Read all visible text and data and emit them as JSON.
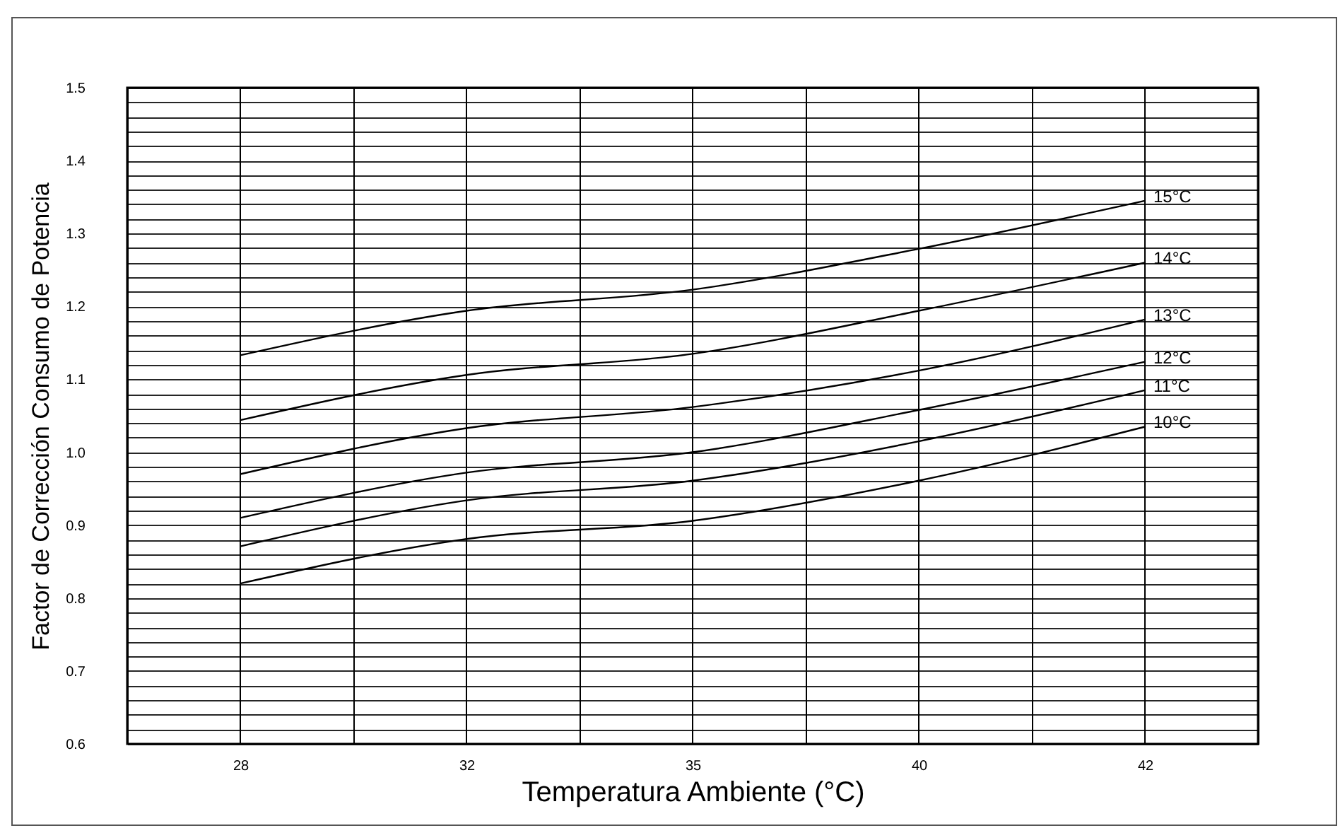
{
  "chart_data": {
    "type": "line",
    "xlabel": "Temperatura Ambiente (°C)",
    "ylabel": "Factor de Corrección Consumo de Potencia",
    "categories": [
      "28",
      "32",
      "35",
      "40",
      "42"
    ],
    "series": [
      {
        "name": "15°C",
        "color": "#000000",
        "values": [
          1.133,
          1.194,
          1.223,
          1.279,
          1.345
        ]
      },
      {
        "name": "14°C",
        "color": "#000000",
        "values": [
          1.044,
          1.106,
          1.135,
          1.194,
          1.26
        ]
      },
      {
        "name": "13°C",
        "color": "#000000",
        "values": [
          0.97,
          1.033,
          1.062,
          1.112,
          1.182
        ]
      },
      {
        "name": "12°C",
        "color": "#000000",
        "values": [
          0.91,
          0.972,
          1.0,
          1.058,
          1.124
        ]
      },
      {
        "name": "11°C",
        "color": "#000000",
        "values": [
          0.871,
          0.934,
          0.961,
          1.015,
          1.085
        ]
      },
      {
        "name": "10°C",
        "color": "#000000",
        "values": [
          0.82,
          0.881,
          0.906,
          0.961,
          1.035
        ]
      }
    ],
    "ylim": [
      0.6,
      1.5
    ],
    "yticks": [
      0.6,
      {
        "value": 0.62,
        "label": null
      },
      {
        "value": 0.64,
        "label": null
      },
      {
        "value": 0.66,
        "label": null
      },
      {
        "value": 0.68,
        "label": null
      },
      0.7,
      {
        "value": 0.72,
        "label": null
      },
      {
        "value": 0.74,
        "label": null
      },
      {
        "value": 0.76,
        "label": null
      },
      {
        "value": 0.78,
        "label": null
      },
      0.8,
      {
        "value": 0.82,
        "label": null
      },
      {
        "value": 0.84,
        "label": null
      },
      {
        "value": 0.86,
        "label": null
      },
      {
        "value": 0.88,
        "label": null
      },
      0.9,
      {
        "value": 0.92,
        "label": null
      },
      {
        "value": 0.94,
        "label": null
      },
      {
        "value": 0.96,
        "label": null
      },
      {
        "value": 0.98,
        "label": null
      },
      {
        "value": 1,
        "label": "1.0"
      },
      {
        "value": 1.02,
        "label": null
      },
      {
        "value": 1.04,
        "label": null
      },
      {
        "value": 1.06,
        "label": null
      },
      {
        "value": 1.08,
        "label": null
      },
      1.1,
      {
        "value": 1.12,
        "label": null
      },
      {
        "value": 1.14,
        "label": null
      },
      {
        "value": 1.16,
        "label": null
      },
      {
        "value": 1.18,
        "label": null
      },
      1.2,
      {
        "value": 1.22,
        "label": null
      },
      {
        "value": 1.24,
        "label": null
      },
      {
        "value": 1.26,
        "label": null
      },
      {
        "value": 1.28,
        "label": null
      },
      1.3,
      {
        "value": 1.32,
        "label": null
      },
      {
        "value": 1.34,
        "label": null
      },
      {
        "value": 1.36,
        "label": null
      },
      {
        "value": 1.38,
        "label": null
      },
      1.4,
      {
        "value": 1.42,
        "label": null
      },
      {
        "value": 1.44,
        "label": null
      },
      {
        "value": 1.46,
        "label": null
      },
      {
        "value": 1.48,
        "label": null
      },
      1.5
    ],
    "grid": true,
    "line_style": "solid",
    "marker": "none"
  }
}
